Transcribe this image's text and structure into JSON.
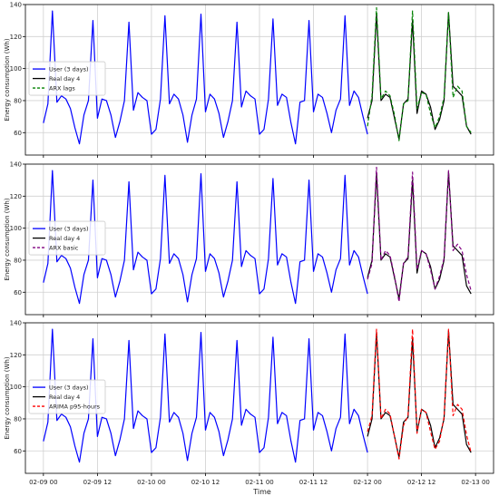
{
  "chart_data": {
    "type": "line",
    "xlabel": "Time",
    "ylabel": "Energy consumption (Wh)",
    "x_tick_labels": [
      "02-09 00",
      "02-09 12",
      "02-10 00",
      "02-10 12",
      "02-11 00",
      "02-11 12",
      "02-12 00",
      "02-12 12",
      "02-13 00"
    ],
    "x_tick_hours": [
      0,
      12,
      24,
      36,
      48,
      60,
      72,
      84,
      96
    ],
    "xlim_hours": [
      -4,
      100
    ],
    "ylim": [
      46,
      140
    ],
    "y_ticks": [
      60,
      80,
      100,
      120,
      140
    ],
    "grid": true,
    "legend_position": "middle-left",
    "colors": {
      "user": "#0000ff",
      "real": "#000000",
      "arx_lags": "#008000",
      "arx_basic": "#800080",
      "arima": "#ff0000"
    },
    "user_series": {
      "name": "User (3 days)",
      "x_start_hour": 0,
      "x_step_hours": 1,
      "values": [
        66,
        78,
        136,
        79,
        83,
        81,
        75,
        63,
        53,
        71,
        80,
        130,
        69,
        81,
        80,
        71,
        57,
        67,
        80,
        129,
        74,
        85,
        82,
        80,
        59,
        62,
        81,
        133,
        78,
        84,
        81,
        71,
        54,
        71,
        81,
        134,
        73,
        84,
        81,
        72,
        57,
        67,
        80,
        129,
        76,
        86,
        83,
        81,
        59,
        62,
        81,
        131,
        77,
        84,
        82,
        66,
        53,
        79,
        80,
        130,
        73,
        84,
        82,
        72,
        60,
        74,
        81,
        133,
        77,
        86,
        82,
        70,
        59
      ]
    },
    "real_series": {
      "name": "Real day 4",
      "x_start_hour": 72,
      "x_step_hours": 1,
      "values": [
        69,
        80,
        134,
        80,
        84,
        82,
        69,
        56,
        78,
        81,
        130,
        72,
        86,
        84,
        76,
        62,
        68,
        80,
        135,
        89,
        86,
        83,
        64,
        59
      ]
    },
    "panels": [
      {
        "legend": [
          "User (3 days)",
          "Real day 4",
          "ARX lags"
        ],
        "forecast": {
          "name": "ARX lags",
          "color_key": "arx_lags",
          "x_start_hour": 72,
          "x_step_hours": 1,
          "values": [
            64,
            83,
            138,
            81,
            86,
            83,
            71,
            55,
            78,
            80,
            136,
            75,
            85,
            84,
            72,
            63,
            70,
            82,
            135,
            82,
            89,
            86,
            64,
            60
          ]
        }
      },
      {
        "legend": [
          "User (3 days)",
          "Real day 4",
          "ARX basic"
        ],
        "forecast": {
          "name": "ARX basic",
          "color_key": "arx_basic",
          "x_start_hour": 72,
          "x_step_hours": 1,
          "values": [
            68,
            78,
            138,
            80,
            86,
            83,
            70,
            54,
            78,
            82,
            135,
            74,
            86,
            84,
            74,
            62,
            70,
            81,
            136,
            86,
            90,
            86,
            71,
            61
          ]
        }
      },
      {
        "legend": [
          "User (3 days)",
          "Real day 4",
          "ARIMA p95-hours"
        ],
        "forecast": {
          "name": "ARIMA p95-hours",
          "color_key": "arima",
          "x_start_hour": 72,
          "x_step_hours": 1,
          "values": [
            72,
            82,
            136,
            80,
            86,
            83,
            69,
            55,
            76,
            82,
            136,
            71,
            86,
            84,
            72,
            61,
            66,
            81,
            136,
            82,
            89,
            86,
            70,
            59
          ]
        }
      }
    ]
  }
}
